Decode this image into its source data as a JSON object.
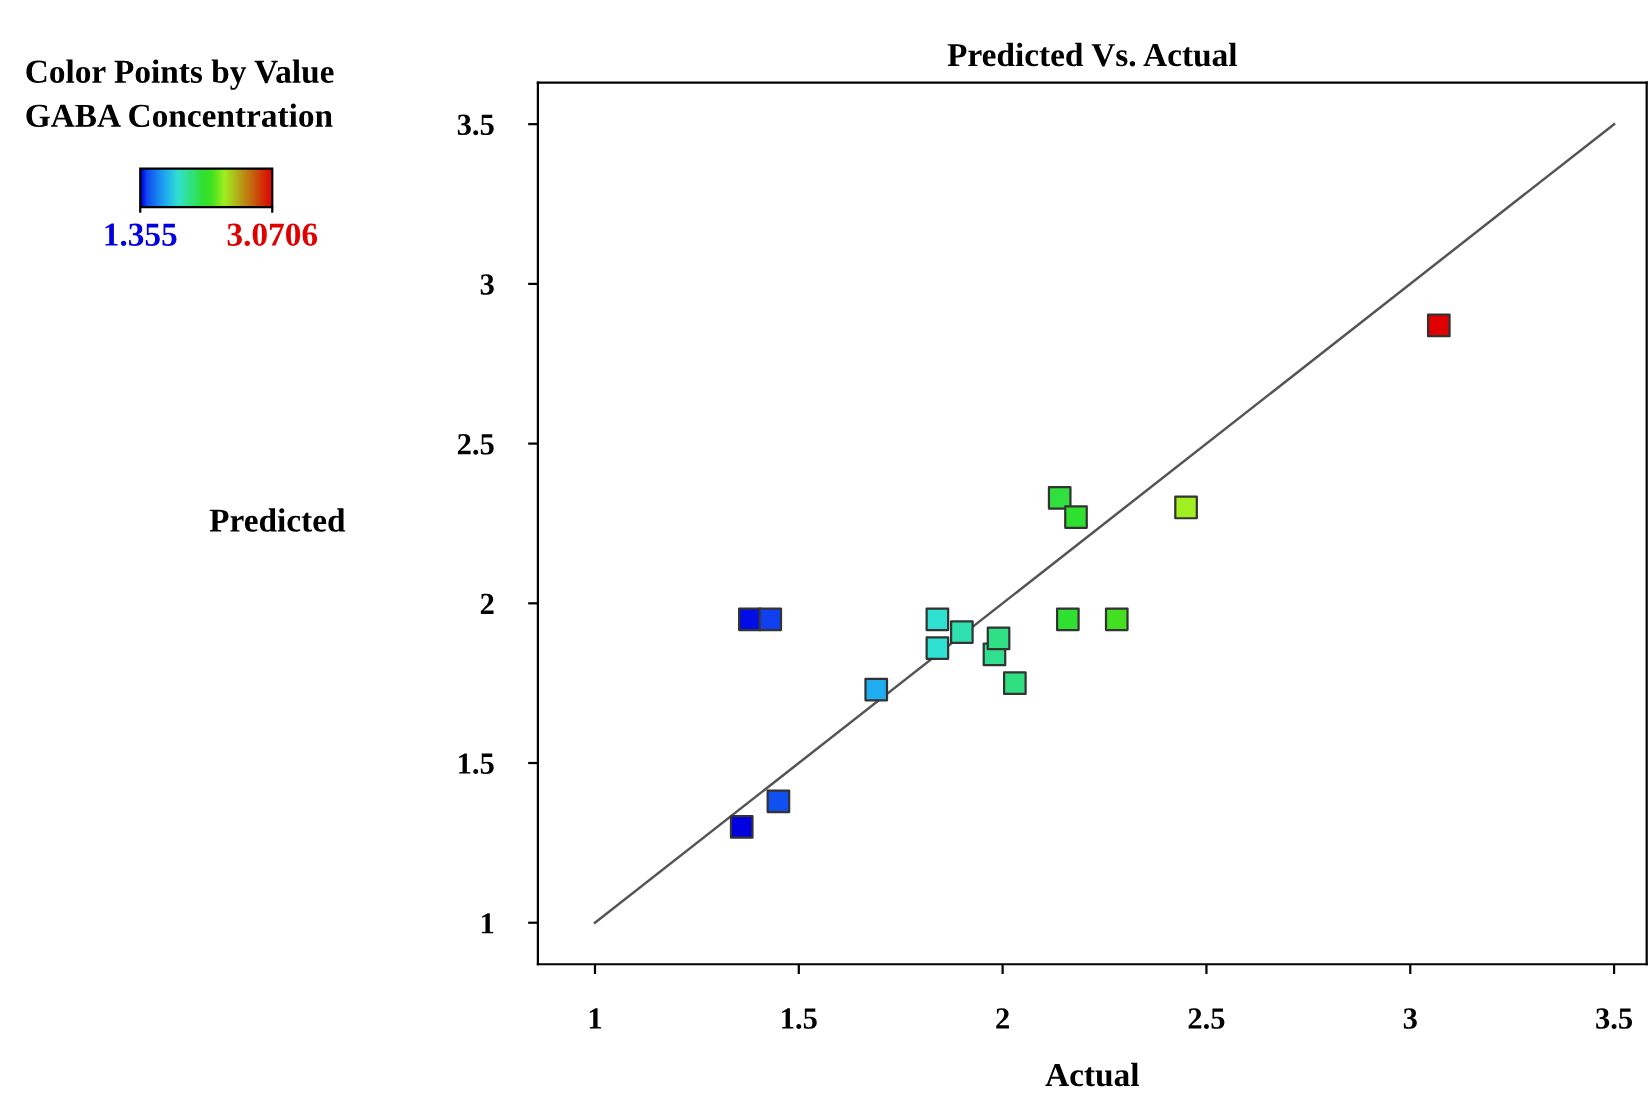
{
  "chart_data": {
    "type": "scatter",
    "title": "Predicted Vs. Actual",
    "xlabel": "Actual",
    "ylabel": "Predicted",
    "clabel": "GABA Concentration",
    "annotations": [
      "Color Points by Value"
    ],
    "series": [
      {
        "x": [
          1.36,
          1.38,
          1.43,
          1.45,
          1.69,
          1.84,
          1.84,
          1.9,
          1.98,
          1.99,
          2.03,
          2.14,
          2.16,
          2.18,
          2.28,
          2.45,
          3.07
        ],
        "values": [
          1.3,
          1.95,
          1.95,
          1.38,
          1.73,
          1.95,
          1.86,
          1.91,
          1.84,
          1.89,
          1.75,
          2.33,
          1.95,
          2.27,
          1.95,
          2.3,
          2.87
        ],
        "cvalues": [
          1.36,
          1.38,
          1.43,
          1.45,
          1.69,
          1.84,
          1.84,
          1.9,
          1.98,
          1.99,
          2.03,
          2.14,
          2.16,
          2.18,
          2.28,
          2.45,
          3.07
        ],
        "colors": [
          "#0000e0",
          "#0010e8",
          "#1040f0",
          "#1050f0",
          "#20b0f0",
          "#30e0e0",
          "#30e0d0",
          "#30e0b0",
          "#30e090",
          "#30e080",
          "#30e080",
          "#30e040",
          "#30e030",
          "#30e030",
          "#40e020",
          "#a0f020",
          "#e00000"
        ],
        "marker": "square"
      },
      {
        "type": "line",
        "x": [
          1,
          3.5
        ],
        "values": [
          1,
          3.5
        ],
        "color": "#555555",
        "marker": "none",
        "line_style": "solid"
      }
    ],
    "xlim": [
      0.86,
      3.58
    ],
    "ylim": [
      0.87,
      3.63
    ],
    "xticks": [
      1,
      1.5,
      2,
      2.5,
      3,
      3.5
    ],
    "yticks": [
      1,
      1.5,
      2,
      2.5,
      3,
      3.5
    ],
    "clim": [
      1.355,
      3.0706
    ],
    "cticks": [
      1.355,
      3.0706
    ],
    "grid": false,
    "legend": false
  }
}
